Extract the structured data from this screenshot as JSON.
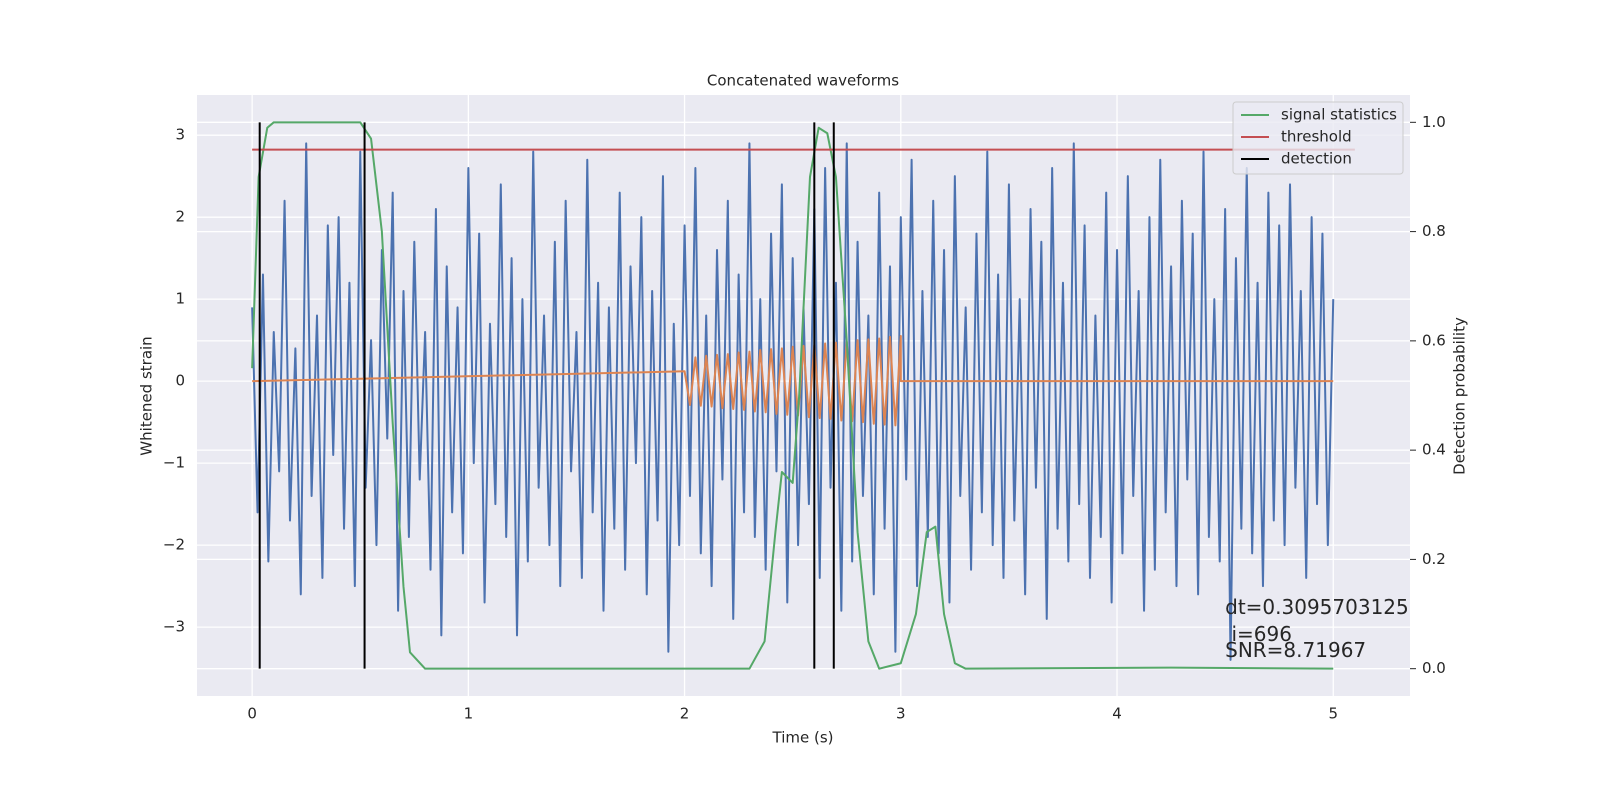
{
  "chart_data": {
    "type": "line",
    "title": "Concatenated waveforms",
    "xlabel": "Time (s)",
    "ylabel": "Whitened strain",
    "y2label": "Detection probability",
    "xlim": [
      -0.255,
      5.355
    ],
    "ylim": [
      -3.84,
      3.49
    ],
    "y2lim": [
      -0.05,
      1.05
    ],
    "xticks": [
      0,
      1,
      2,
      3,
      4,
      5
    ],
    "yticks": [
      {
        "value": -3,
        "label": "−3"
      },
      {
        "value": -2,
        "label": "−2"
      },
      {
        "value": -1,
        "label": "−1"
      },
      0,
      1,
      2,
      3
    ],
    "y2ticks": [
      {
        "value": 0,
        "label": "0.0"
      },
      0.2,
      0.4,
      0.6,
      0.8,
      {
        "value": 1,
        "label": "1.0"
      }
    ],
    "grid": true,
    "legend": "upper right",
    "series": [
      {
        "color": "#4c72b0",
        "x": [
          0,
          0.025,
          0.05,
          0.075,
          0.1,
          0.125,
          0.15,
          0.175,
          0.2,
          0.225,
          0.25,
          0.275,
          0.3,
          0.325,
          0.35,
          0.375,
          0.4,
          0.425,
          0.45,
          0.475,
          0.5,
          0.525,
          0.55,
          0.575,
          0.6,
          0.625,
          0.65,
          0.675,
          0.7,
          0.725,
          0.75,
          0.775,
          0.8,
          0.825,
          0.85,
          0.875,
          0.9,
          0.925,
          0.95,
          0.975,
          1,
          1.025,
          1.05,
          1.075,
          1.1,
          1.125,
          1.15,
          1.175,
          1.2,
          1.225,
          1.25,
          1.275,
          1.3,
          1.325,
          1.35,
          1.375,
          1.4,
          1.425,
          1.45,
          1.475,
          1.5,
          1.525,
          1.55,
          1.575,
          1.6,
          1.625,
          1.65,
          1.675,
          1.7,
          1.725,
          1.75,
          1.775,
          1.8,
          1.825,
          1.85,
          1.875,
          1.9,
          1.925,
          1.95,
          1.975,
          2,
          2.025,
          2.05,
          2.075,
          2.1,
          2.125,
          2.15,
          2.175,
          2.2,
          2.225,
          2.25,
          2.275,
          2.3,
          2.325,
          2.35,
          2.375,
          2.4,
          2.425,
          2.45,
          2.475,
          2.5,
          2.525,
          2.55,
          2.575,
          2.6,
          2.625,
          2.65,
          2.675,
          2.7,
          2.725,
          2.75,
          2.775,
          2.8,
          2.825,
          2.85,
          2.875,
          2.9,
          2.925,
          2.95,
          2.975,
          3,
          3.025,
          3.05,
          3.075,
          3.1,
          3.125,
          3.15,
          3.175,
          3.2,
          3.225,
          3.25,
          3.275,
          3.3,
          3.325,
          3.35,
          3.375,
          3.4,
          3.425,
          3.45,
          3.475,
          3.5,
          3.525,
          3.55,
          3.575,
          3.6,
          3.625,
          3.65,
          3.675,
          3.7,
          3.725,
          3.75,
          3.775,
          3.8,
          3.825,
          3.85,
          3.875,
          3.9,
          3.925,
          3.95,
          3.975,
          4,
          4.025,
          4.05,
          4.075,
          4.1,
          4.125,
          4.15,
          4.175,
          4.2,
          4.225,
          4.25,
          4.275,
          4.3,
          4.325,
          4.35,
          4.375,
          4.4,
          4.425,
          4.45,
          4.475,
          4.5,
          4.525,
          4.55,
          4.575,
          4.6,
          4.625,
          4.65,
          4.675,
          4.7,
          4.725,
          4.75,
          4.775,
          4.8,
          4.825,
          4.85,
          4.875,
          4.9,
          4.925,
          4.95,
          4.975,
          5
        ],
        "values": [
          0.9,
          -1.6,
          1.3,
          -2.2,
          0.6,
          -1.1,
          2.2,
          -1.7,
          0.4,
          -2.6,
          2.9,
          -1.4,
          0.8,
          -2.4,
          1.9,
          -0.9,
          2.0,
          -1.8,
          1.2,
          -2.5,
          2.8,
          -1.3,
          0.5,
          -2.0,
          1.6,
          -0.7,
          2.3,
          -2.8,
          1.1,
          -1.9,
          1.7,
          -1.2,
          0.6,
          -2.3,
          2.1,
          -3.1,
          1.4,
          -1.6,
          0.9,
          -2.1,
          2.6,
          -1.0,
          1.8,
          -2.7,
          0.7,
          -1.5,
          2.4,
          -1.9,
          1.5,
          -3.1,
          1.0,
          -2.2,
          2.8,
          -1.3,
          0.8,
          -2.0,
          1.7,
          -2.5,
          2.2,
          -1.1,
          0.6,
          -2.4,
          2.7,
          -1.6,
          1.2,
          -2.8,
          0.9,
          -1.8,
          2.3,
          -2.3,
          1.4,
          -1.0,
          2.0,
          -2.6,
          1.1,
          -1.7,
          2.5,
          -3.3,
          0.7,
          -2.0,
          1.9,
          -1.4,
          2.6,
          -2.1,
          0.8,
          -2.5,
          1.6,
          -1.2,
          2.2,
          -2.9,
          1.3,
          -1.6,
          2.9,
          -1.9,
          1.0,
          -2.3,
          1.8,
          -1.1,
          2.4,
          -2.7,
          1.5,
          -2.0,
          0.9,
          -1.5,
          2.1,
          -2.4,
          2.6,
          -1.3,
          1.2,
          -2.8,
          2.9,
          -2.2,
          1.7,
          -1.4,
          0.8,
          -2.6,
          2.3,
          -1.8,
          1.4,
          -3.3,
          2.0,
          -1.2,
          2.7,
          -2.5,
          1.1,
          -1.9,
          2.2,
          -2.1,
          1.6,
          -2.7,
          2.5,
          -1.4,
          0.9,
          -2.3,
          1.8,
          -1.6,
          2.8,
          -2.0,
          1.3,
          -2.4,
          2.4,
          -1.7,
          1.0,
          -2.6,
          2.1,
          -1.3,
          1.7,
          -2.9,
          2.6,
          -1.8,
          1.2,
          -2.2,
          2.9,
          -1.5,
          1.9,
          -2.4,
          0.8,
          -1.9,
          2.3,
          -2.7,
          1.6,
          -2.1,
          2.5,
          -1.4,
          1.1,
          -2.8,
          2.0,
          -2.3,
          2.7,
          -1.6,
          1.4,
          -2.5,
          2.2,
          -1.2,
          1.8,
          -2.6,
          2.8,
          -1.9,
          1.0,
          -2.2,
          2.1,
          -3.4,
          1.5,
          -1.8,
          2.6,
          -2.1,
          1.2,
          -2.5,
          2.3,
          -1.7,
          1.9,
          -2.0,
          2.4,
          -1.3,
          1.1,
          -2.4,
          2.0,
          -1.5,
          1.8,
          -2.0,
          1.0
        ]
      },
      {
        "color": "#dd8452",
        "x": [
          0,
          2,
          2.025,
          2.05,
          2.075,
          2.1,
          2.125,
          2.15,
          2.175,
          2.2,
          2.225,
          2.25,
          2.275,
          2.3,
          2.325,
          2.35,
          2.375,
          2.4,
          2.425,
          2.45,
          2.475,
          2.5,
          2.525,
          2.55,
          2.575,
          2.6,
          2.625,
          2.65,
          2.675,
          2.7,
          2.725,
          2.75,
          2.775,
          2.8,
          2.825,
          2.85,
          2.875,
          2.9,
          2.925,
          2.95,
          2.975,
          3,
          3,
          5
        ],
        "values": [
          0,
          0.12,
          -0.29,
          0.29,
          -0.3,
          0.31,
          -0.31,
          0.32,
          -0.33,
          0.33,
          -0.34,
          0.35,
          -0.35,
          0.36,
          -0.37,
          0.38,
          -0.38,
          0.39,
          -0.4,
          0.4,
          -0.41,
          0.42,
          -0.42,
          0.43,
          -0.44,
          0.44,
          -0.45,
          0.46,
          -0.46,
          0.47,
          -0.48,
          0.48,
          -0.49,
          0.5,
          -0.5,
          0.51,
          -0.52,
          0.52,
          -0.53,
          0.54,
          -0.54,
          0.55,
          0,
          0
        ]
      },
      {
        "name": "signal statistics",
        "color": "#55a868",
        "axis": "y2",
        "x": [
          0,
          0.03,
          0.07,
          0.1,
          0.5,
          0.55,
          0.6,
          0.65,
          0.7,
          0.73,
          0.8,
          2.3,
          2.37,
          2.42,
          2.45,
          2.5,
          2.53,
          2.58,
          2.62,
          2.66,
          2.7,
          2.75,
          2.8,
          2.85,
          2.9,
          3.0,
          3.07,
          3.12,
          3.16,
          3.2,
          3.25,
          3.3,
          4.25,
          5
        ],
        "values": [
          0.55,
          0.9,
          0.99,
          1.0,
          1.0,
          0.97,
          0.8,
          0.45,
          0.15,
          0.03,
          0.0,
          0.0,
          0.05,
          0.25,
          0.36,
          0.34,
          0.5,
          0.9,
          0.99,
          0.98,
          0.9,
          0.6,
          0.25,
          0.05,
          0.0,
          0.01,
          0.1,
          0.25,
          0.26,
          0.1,
          0.01,
          0.0,
          0.002,
          0.0
        ]
      },
      {
        "name": "threshold",
        "color": "#c44e52",
        "axis": "y2",
        "x": [
          0,
          5.1
        ],
        "values": [
          0.95,
          0.95
        ]
      },
      {
        "name": "detection",
        "color": "#000000",
        "axis": "y2",
        "vlines": [
          0.035,
          0.52,
          2.6,
          2.69
        ],
        "span": [
          0,
          1
        ]
      }
    ],
    "annotations": [
      "dt=0.3095703125",
      " i=696",
      "SNR=8.71967"
    ]
  }
}
